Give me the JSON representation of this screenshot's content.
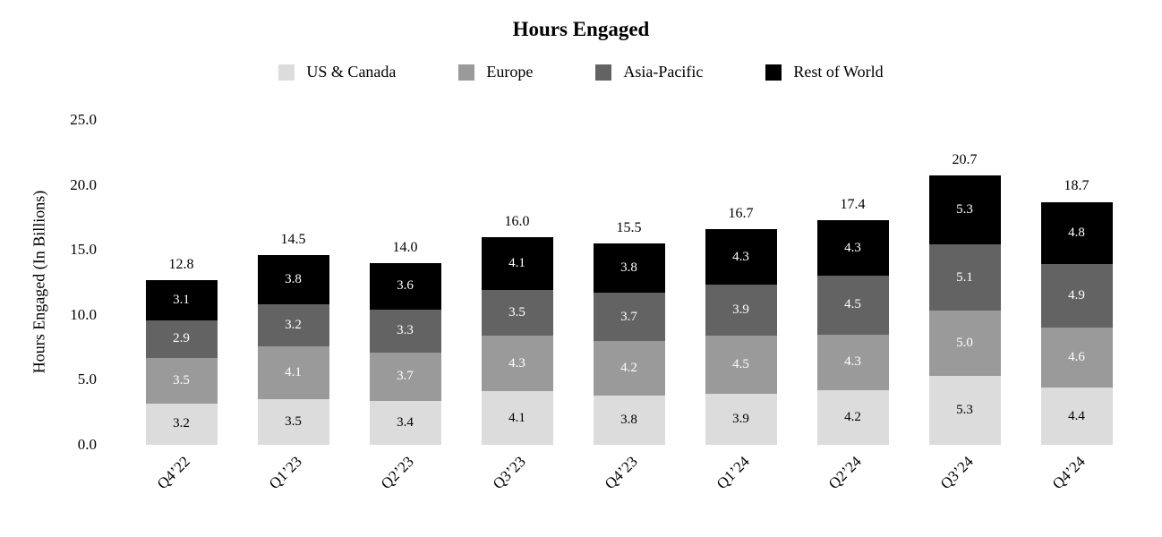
{
  "page": {
    "background": "#ffffff"
  },
  "chart_data": {
    "type": "bar",
    "stacked": true,
    "title": "Hours Engaged",
    "ylabel": "Hours Engaged (In Billions)",
    "xlabel": "",
    "grid": false,
    "legend_position": "top",
    "ylim": [
      0,
      25
    ],
    "yticks": [
      "25.0",
      "20.0",
      "15.0",
      "10.0",
      "5.0",
      "0.0"
    ],
    "categories": [
      "Q4’22",
      "Q1’23",
      "Q2’23",
      "Q3’23",
      "Q4’23",
      "Q1’24",
      "Q2’24",
      "Q3’24",
      "Q4’24"
    ],
    "series": [
      {
        "name": "US & Canada",
        "color": "#dcdcdc",
        "label_color": "#000000",
        "values": [
          3.2,
          3.5,
          3.4,
          4.1,
          3.8,
          3.9,
          4.2,
          5.3,
          4.4
        ]
      },
      {
        "name": "Europe",
        "color": "#9a9a9a",
        "label_color": "#ffffff",
        "values": [
          3.5,
          4.1,
          3.7,
          4.3,
          4.2,
          4.5,
          4.3,
          5.0,
          4.6
        ]
      },
      {
        "name": "Asia-Pacific",
        "color": "#636363",
        "label_color": "#ffffff",
        "values": [
          2.9,
          3.2,
          3.3,
          3.5,
          3.7,
          3.9,
          4.5,
          5.1,
          4.9
        ]
      },
      {
        "name": "Rest of World",
        "color": "#000000",
        "label_color": "#ffffff",
        "values": [
          3.1,
          3.8,
          3.6,
          4.1,
          3.8,
          4.3,
          4.3,
          5.3,
          4.8
        ]
      }
    ],
    "totals": [
      12.8,
      14.5,
      14.0,
      16.0,
      15.5,
      16.7,
      17.4,
      20.7,
      18.7
    ]
  }
}
